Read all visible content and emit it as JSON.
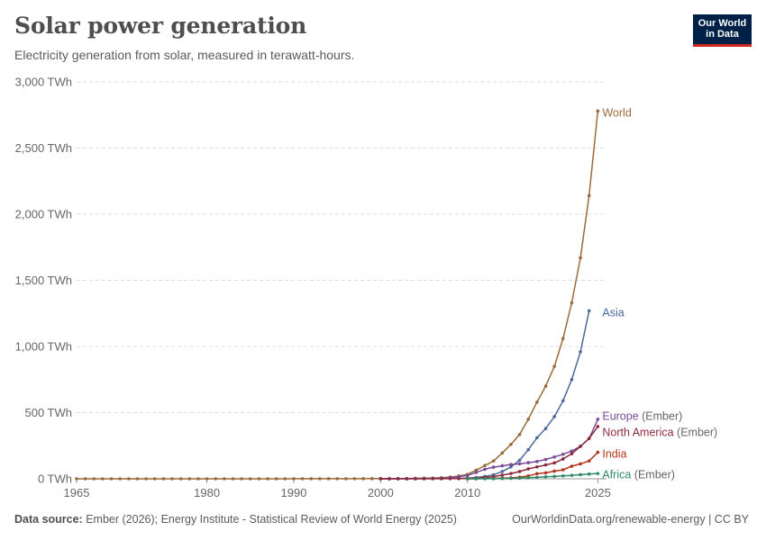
{
  "header": {
    "title": "Solar power generation",
    "subtitle": "Electricity generation from solar, measured in terawatt-hours."
  },
  "logo": {
    "line1": "Our World",
    "line2": "in Data"
  },
  "footer": {
    "source_label": "Data source:",
    "source_text": "Ember (2026); Energy Institute - Statistical Review of World Energy (2025)",
    "url": "OurWorldinData.org/renewable-energy | CC BY"
  },
  "colors": {
    "World": "#9a6a3b",
    "Asia": "#4c6a9c",
    "Europe (Ember)": "#7a4b96",
    "North America (Ember)": "#8b2a3e",
    "India": "#b4331c",
    "Africa (Ember)": "#2f8a6a",
    "grid": "#dddddd",
    "axis_text": "#666666"
  },
  "chart_data": {
    "type": "line",
    "title": "Solar power generation",
    "subtitle": "Electricity generation from solar, measured in terawatt-hours.",
    "xlabel": "",
    "ylabel": "",
    "xlim": [
      1965,
      2026
    ],
    "ylim": [
      0,
      3000
    ],
    "unit": "TWh",
    "grid": "horizontal dashed",
    "legend": "inline labels at line ends (right)",
    "x_ticks": [
      "1965",
      "1980",
      "1990",
      "2000",
      "2010",
      "2025"
    ],
    "y_ticks": [
      "0 TWh",
      "500 TWh",
      "1,000 TWh",
      "1,500 TWh",
      "2,000 TWh",
      "2,500 TWh",
      "3,000 TWh"
    ],
    "series": [
      {
        "name": "World",
        "label_main": "World",
        "label_suffix": "",
        "x": [
          1965,
          1966,
          1967,
          1968,
          1969,
          1970,
          1971,
          1972,
          1973,
          1974,
          1975,
          1976,
          1977,
          1978,
          1979,
          1980,
          1981,
          1982,
          1983,
          1984,
          1985,
          1986,
          1987,
          1988,
          1989,
          1990,
          1991,
          1992,
          1993,
          1994,
          1995,
          1996,
          1997,
          1998,
          1999,
          2000,
          2001,
          2002,
          2003,
          2004,
          2005,
          2006,
          2007,
          2008,
          2009,
          2010,
          2011,
          2012,
          2013,
          2014,
          2015,
          2016,
          2017,
          2018,
          2019,
          2020,
          2021,
          2022,
          2023,
          2024,
          2025
        ],
        "y": [
          0,
          0,
          0,
          0,
          0,
          0,
          0,
          0,
          0,
          0,
          0,
          0,
          0,
          0,
          0,
          0,
          0,
          0,
          0,
          0,
          0,
          0,
          0,
          0,
          0,
          0.4,
          0.5,
          0.5,
          0.6,
          0.6,
          0.7,
          0.8,
          0.9,
          1,
          1.2,
          1.3,
          1.6,
          2,
          2.6,
          3.5,
          4.5,
          6,
          8,
          13,
          21,
          33,
          65,
          100,
          135,
          195,
          260,
          335,
          450,
          580,
          700,
          850,
          1060,
          1330,
          1670,
          2140,
          2780
        ]
      },
      {
        "name": "Asia",
        "label_main": "Asia",
        "label_suffix": "",
        "x": [
          2000,
          2001,
          2002,
          2003,
          2004,
          2005,
          2006,
          2007,
          2008,
          2009,
          2010,
          2011,
          2012,
          2013,
          2014,
          2015,
          2016,
          2017,
          2018,
          2019,
          2020,
          2021,
          2022,
          2023,
          2024
        ],
        "y": [
          0.3,
          0.4,
          0.5,
          0.6,
          0.8,
          1,
          1.3,
          1.6,
          2,
          3,
          5,
          10,
          18,
          30,
          55,
          90,
          140,
          220,
          310,
          380,
          470,
          590,
          750,
          960,
          1270
        ]
      },
      {
        "name": "Europe (Ember)",
        "label_main": "Europe",
        "label_suffix": " (Ember)",
        "x": [
          2000,
          2001,
          2002,
          2003,
          2004,
          2005,
          2006,
          2007,
          2008,
          2009,
          2010,
          2011,
          2012,
          2013,
          2014,
          2015,
          2016,
          2017,
          2018,
          2019,
          2020,
          2021,
          2022,
          2023,
          2024,
          2025
        ],
        "y": [
          0.1,
          0.2,
          0.3,
          0.4,
          0.8,
          1.5,
          2.5,
          4,
          8,
          15,
          25,
          48,
          72,
          88,
          98,
          108,
          113,
          122,
          131,
          146,
          165,
          185,
          210,
          245,
          305,
          450
        ]
      },
      {
        "name": "North America (Ember)",
        "label_main": "North America",
        "label_suffix": " (Ember)",
        "x": [
          2000,
          2001,
          2002,
          2003,
          2004,
          2005,
          2006,
          2007,
          2008,
          2009,
          2010,
          2011,
          2012,
          2013,
          2014,
          2015,
          2016,
          2017,
          2018,
          2019,
          2020,
          2021,
          2022,
          2023,
          2024,
          2025
        ],
        "y": [
          0.5,
          0.5,
          0.6,
          0.6,
          0.7,
          0.7,
          0.8,
          1,
          1.5,
          2,
          3,
          5,
          10,
          16,
          28,
          40,
          55,
          75,
          90,
          105,
          120,
          150,
          190,
          245,
          305,
          395
        ]
      },
      {
        "name": "India",
        "label_main": "India",
        "label_suffix": "",
        "x": [
          2010,
          2011,
          2012,
          2013,
          2014,
          2015,
          2016,
          2017,
          2018,
          2019,
          2020,
          2021,
          2022,
          2023,
          2024,
          2025
        ],
        "y": [
          0.1,
          0.5,
          2,
          3.5,
          5,
          7,
          12,
          22,
          39,
          45,
          58,
          68,
          95,
          113,
          135,
          200
        ]
      },
      {
        "name": "Africa (Ember)",
        "label_main": "Africa",
        "label_suffix": " (Ember)",
        "x": [
          2010,
          2011,
          2012,
          2013,
          2014,
          2015,
          2016,
          2017,
          2018,
          2019,
          2020,
          2021,
          2022,
          2023,
          2024,
          2025
        ],
        "y": [
          0.1,
          0.2,
          0.5,
          1,
          2,
          3,
          5,
          8,
          11,
          15,
          18,
          22,
          26,
          31,
          36,
          40
        ]
      }
    ]
  }
}
